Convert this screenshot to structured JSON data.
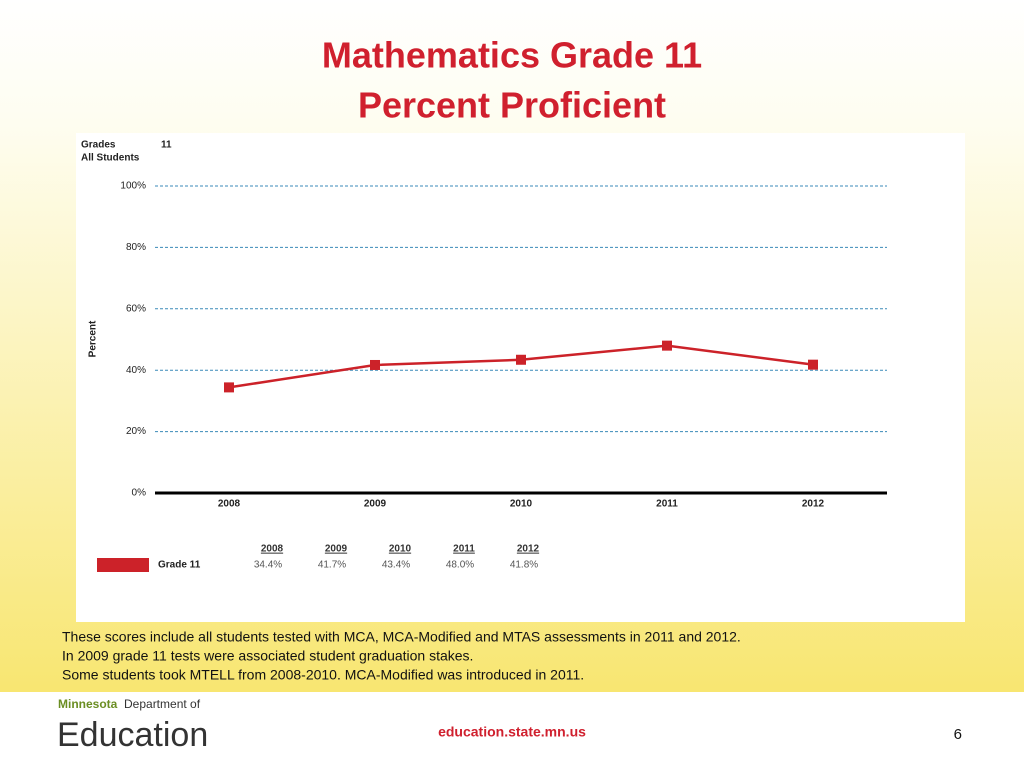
{
  "chart_data": {
    "type": "line",
    "title": "Mathematics Grade 11",
    "subtitle": "Percent Proficient",
    "filters": [
      {
        "label": "Grades",
        "value": "11"
      },
      {
        "label": "All Students"
      }
    ],
    "ylabel": "Percent",
    "categories": [
      "2008",
      "2009",
      "2010",
      "2011",
      "2012"
    ],
    "series": [
      {
        "name": "Grade 11",
        "color": "#cc2229",
        "values": [
          34.4,
          41.7,
          43.4,
          48.0,
          41.8
        ],
        "value_labels": [
          "34.4%",
          "41.7%",
          "43.4%",
          "48.0%",
          "41.8%"
        ]
      }
    ],
    "ylim": [
      0,
      100
    ],
    "yticks": [
      {
        "value": 0,
        "label": "0%"
      },
      {
        "value": 20,
        "label": "20%"
      },
      {
        "value": 40,
        "label": "40%"
      },
      {
        "value": 60,
        "label": "60%"
      },
      {
        "value": 80,
        "label": "80%"
      },
      {
        "value": 100,
        "label": "100%"
      }
    ],
    "grid": true
  },
  "notes": [
    "These scores include all students tested with MCA, MCA-Modified and MTAS assessments in 2011 and 2012.",
    "In 2009 grade 11 tests were associated student graduation stakes.",
    "Some students took MTELL from 2008-2010.  MCA-Modified was introduced in 2011."
  ],
  "footer": {
    "logo_state": "Minnesota",
    "logo_department": "Department of",
    "logo_name": "Education",
    "url": "education.state.mn.us",
    "page": "6"
  }
}
